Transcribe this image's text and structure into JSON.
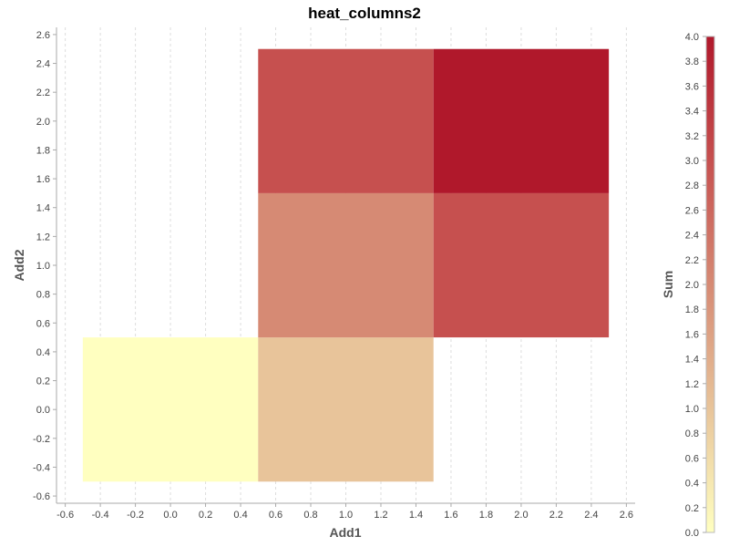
{
  "chart_data": {
    "type": "heatmap",
    "title": "heat_columns2",
    "xlabel": "Add1",
    "ylabel": "Add2",
    "colorbar_label": "Sum",
    "xlim": [
      -0.65,
      2.65
    ],
    "ylim": [
      -0.65,
      2.65
    ],
    "x_ticks": [
      "-0.6",
      "-0.4",
      "-0.2",
      "0.0",
      "0.2",
      "0.4",
      "0.6",
      "0.8",
      "1.0",
      "1.2",
      "1.4",
      "1.6",
      "1.8",
      "2.0",
      "2.2",
      "2.4",
      "2.6"
    ],
    "y_ticks": [
      "-0.6",
      "-0.4",
      "-0.2",
      "0.0",
      "0.2",
      "0.4",
      "0.6",
      "0.8",
      "1.0",
      "1.2",
      "1.4",
      "1.6",
      "1.8",
      "2.0",
      "2.2",
      "2.4",
      "2.6"
    ],
    "colorbar_ticks": [
      "0.0",
      "0.2",
      "0.4",
      "0.6",
      "0.8",
      "1.0",
      "1.2",
      "1.4",
      "1.6",
      "1.8",
      "2.0",
      "2.2",
      "2.4",
      "2.6",
      "2.8",
      "3.0",
      "3.2",
      "3.4",
      "3.6",
      "3.8",
      "4.0"
    ],
    "colorbar_range": [
      0,
      4
    ],
    "colorscale": [
      "#ffffc0",
      "#e8c49a",
      "#d68a74",
      "#c6504f",
      "#b0182b"
    ],
    "cells": [
      {
        "x0": -0.5,
        "x1": 0.5,
        "y0": -0.5,
        "y1": 0.5,
        "value": 0
      },
      {
        "x0": 0.5,
        "x1": 1.5,
        "y0": -0.5,
        "y1": 0.5,
        "value": 1
      },
      {
        "x0": 0.5,
        "x1": 1.5,
        "y0": 0.5,
        "y1": 1.5,
        "value": 2
      },
      {
        "x0": 0.5,
        "x1": 1.5,
        "y0": 1.5,
        "y1": 2.5,
        "value": 3
      },
      {
        "x0": 1.5,
        "x1": 2.5,
        "y0": 0.5,
        "y1": 1.5,
        "value": 3
      },
      {
        "x0": 1.5,
        "x1": 2.5,
        "y0": 1.5,
        "y1": 2.5,
        "value": 4
      }
    ],
    "grid": "vertical-dashed",
    "colors": {
      "grid": "#dddddd",
      "axis": "#aaaaaa",
      "tick_text": "#444444",
      "title_text": "#000000",
      "axis_title_text": "#555555"
    }
  }
}
